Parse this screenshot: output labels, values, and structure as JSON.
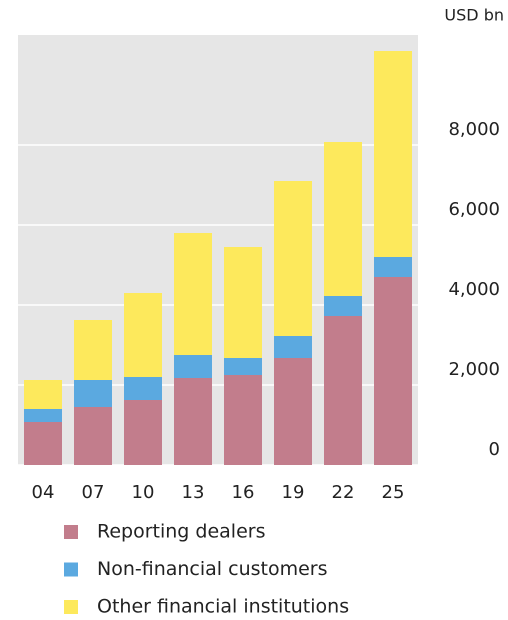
{
  "chart_data": {
    "type": "bar",
    "stacked": true,
    "unit_label": "USD bn",
    "categories": [
      "04",
      "07",
      "10",
      "13",
      "16",
      "19",
      "22",
      "25"
    ],
    "series": [
      {
        "name": "Reporting dealers",
        "color": "#c27d8c",
        "values": [
          1075,
          1450,
          1625,
          2175,
          2250,
          2675,
          3725,
          4700
        ]
      },
      {
        "name": "Non-financial customers",
        "color": "#5ba9e0",
        "values": [
          325,
          675,
          575,
          575,
          425,
          550,
          500,
          500
        ]
      },
      {
        "name": "Other financial institutions",
        "color": "#fde95c",
        "values": [
          725,
          1500,
          2100,
          3050,
          2775,
          3875,
          3850,
          5150
        ]
      }
    ],
    "ylim": [
      0,
      10750
    ],
    "yticks": [
      0,
      {
        "value": 2000,
        "label": "2,000"
      },
      {
        "value": 4000,
        "label": "4,000"
      },
      {
        "value": 6000,
        "label": "6,000"
      },
      {
        "value": 8000,
        "label": "8,000"
      }
    ],
    "grid": true
  }
}
